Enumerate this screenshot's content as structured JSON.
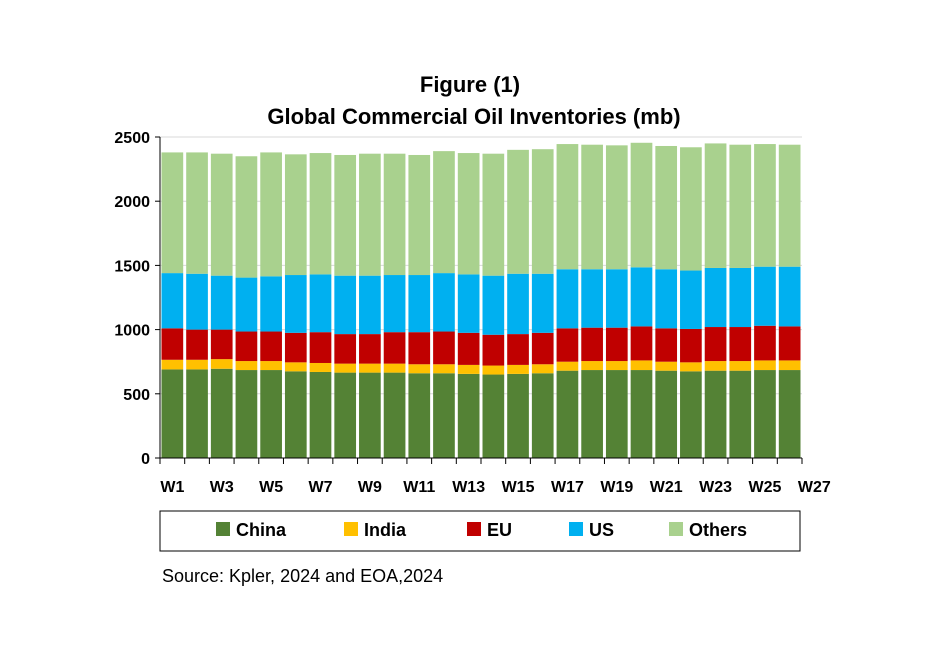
{
  "chart_data": {
    "type": "bar",
    "stacked": true,
    "title": "Figure (1)",
    "subtitle": "Global Commercial Oil Inventories  (mb)",
    "xlabel": "",
    "ylabel": "",
    "ylim": [
      0,
      2500
    ],
    "yticks": [
      "0",
      "500",
      "1000",
      "1500",
      "2000",
      "2500"
    ],
    "xtick_labels": [
      "W1",
      "W3",
      "W5",
      "W7",
      "W9",
      "W11",
      "W13",
      "W15",
      "W17",
      "W19",
      "W21",
      "W23",
      "W25",
      "W27"
    ],
    "categories": [
      "W1",
      "W2",
      "W3",
      "W4",
      "W5",
      "W6",
      "W7",
      "W8",
      "W9",
      "W10",
      "W11",
      "W12",
      "W13",
      "W14",
      "W15",
      "W16",
      "W17",
      "W18",
      "W19",
      "W20",
      "W21",
      "W22",
      "W23",
      "W24",
      "W25",
      "W26"
    ],
    "legend_position": "bottom",
    "series": [
      {
        "name": "China",
        "color": "#548235",
        "values": [
          690,
          690,
          695,
          685,
          685,
          675,
          670,
          665,
          665,
          665,
          660,
          660,
          655,
          650,
          655,
          660,
          680,
          685,
          685,
          685,
          680,
          675,
          680,
          680,
          685,
          685
        ]
      },
      {
        "name": "India",
        "color": "#FFC000",
        "values": [
          75,
          75,
          75,
          70,
          70,
          70,
          70,
          70,
          70,
          70,
          70,
          70,
          70,
          70,
          70,
          70,
          70,
          70,
          70,
          75,
          70,
          70,
          75,
          75,
          75,
          75
        ]
      },
      {
        "name": "EU",
        "color": "#C00000",
        "values": [
          245,
          235,
          230,
          230,
          230,
          230,
          240,
          230,
          230,
          245,
          250,
          255,
          250,
          240,
          240,
          245,
          260,
          260,
          260,
          265,
          260,
          260,
          265,
          265,
          270,
          265
        ]
      },
      {
        "name": "US",
        "color": "#00B0F0",
        "values": [
          430,
          435,
          420,
          420,
          430,
          450,
          450,
          455,
          455,
          445,
          445,
          455,
          455,
          460,
          470,
          460,
          460,
          455,
          455,
          460,
          460,
          455,
          460,
          460,
          460,
          465
        ]
      },
      {
        "name": "Others",
        "color": "#A9D18E",
        "values": [
          940,
          945,
          950,
          945,
          965,
          940,
          945,
          940,
          950,
          945,
          935,
          950,
          945,
          950,
          965,
          970,
          975,
          970,
          965,
          970,
          960,
          960,
          970,
          960,
          955,
          950
        ]
      }
    ]
  },
  "source_text": "Source: Kpler, 2024 and EOA,2024"
}
